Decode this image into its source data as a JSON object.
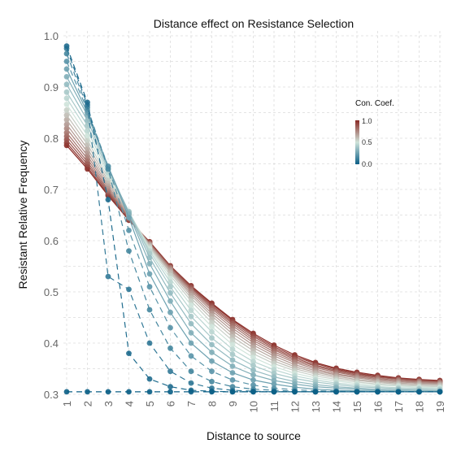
{
  "chart_data": {
    "type": "line",
    "title": "Distance effect on Resistance Selection",
    "xlabel": "Distance to source",
    "ylabel": "Resistant Relative Frequency",
    "x": [
      1,
      2,
      3,
      4,
      5,
      6,
      7,
      8,
      9,
      10,
      11,
      12,
      13,
      14,
      15,
      16,
      17,
      18,
      19
    ],
    "xlim": [
      1,
      19
    ],
    "ylim": [
      0.3,
      1.0
    ],
    "yticks": [
      "0.3",
      "0.4",
      "0.5",
      "0.6",
      "0.7",
      "0.8",
      "0.9",
      "1.0"
    ],
    "xticks": [
      "1",
      "2",
      "3",
      "4",
      "5",
      "6",
      "7",
      "8",
      "9",
      "10",
      "11",
      "12",
      "13",
      "14",
      "15",
      "16",
      "17",
      "18",
      "19"
    ],
    "grid": true,
    "legend": {
      "title": "Con. Coef.",
      "placement": "top-right",
      "ticks": [
        "0.0",
        "0.5",
        "1.0"
      ],
      "low_color": "#0b5f86",
      "mid_color": "#cfe3da",
      "high_color": "#8a2a25"
    },
    "series": [
      {
        "coef": 0.0,
        "values": [
          0.305,
          0.305,
          0.305,
          0.305,
          0.305,
          0.305,
          0.305,
          0.305,
          0.305,
          0.305,
          0.305,
          0.305,
          0.305,
          0.305,
          0.305,
          0.305,
          0.305,
          0.305,
          0.305
        ]
      },
      {
        "coef": 0.05,
        "values": [
          0.98,
          0.87,
          0.68,
          0.38,
          0.33,
          0.315,
          0.308,
          0.306,
          0.305,
          0.305,
          0.305,
          0.305,
          0.305,
          0.305,
          0.305,
          0.305,
          0.305,
          0.305,
          0.305
        ]
      },
      {
        "coef": 0.1,
        "values": [
          0.975,
          0.865,
          0.53,
          0.505,
          0.4,
          0.345,
          0.322,
          0.312,
          0.308,
          0.306,
          0.305,
          0.305,
          0.305,
          0.305,
          0.305,
          0.305,
          0.305,
          0.305,
          0.305
        ]
      },
      {
        "coef": 0.15,
        "values": [
          0.965,
          0.86,
          0.74,
          0.58,
          0.465,
          0.39,
          0.345,
          0.325,
          0.315,
          0.31,
          0.308,
          0.306,
          0.305,
          0.305,
          0.305,
          0.305,
          0.305,
          0.305,
          0.305
        ]
      },
      {
        "coef": 0.2,
        "values": [
          0.95,
          0.855,
          0.745,
          0.62,
          0.51,
          0.43,
          0.375,
          0.345,
          0.328,
          0.318,
          0.312,
          0.309,
          0.307,
          0.306,
          0.305,
          0.305,
          0.305,
          0.305,
          0.305
        ]
      },
      {
        "coef": 0.25,
        "values": [
          0.935,
          0.85,
          0.745,
          0.645,
          0.535,
          0.46,
          0.4,
          0.365,
          0.342,
          0.328,
          0.32,
          0.314,
          0.31,
          0.308,
          0.307,
          0.306,
          0.305,
          0.305,
          0.305
        ]
      },
      {
        "coef": 0.3,
        "values": [
          0.92,
          0.845,
          0.745,
          0.652,
          0.555,
          0.482,
          0.42,
          0.382,
          0.355,
          0.338,
          0.327,
          0.32,
          0.315,
          0.312,
          0.31,
          0.308,
          0.307,
          0.306,
          0.306
        ]
      },
      {
        "coef": 0.35,
        "values": [
          0.905,
          0.835,
          0.742,
          0.655,
          0.567,
          0.498,
          0.438,
          0.397,
          0.367,
          0.347,
          0.334,
          0.325,
          0.319,
          0.315,
          0.312,
          0.31,
          0.309,
          0.308,
          0.307
        ]
      },
      {
        "coef": 0.4,
        "values": [
          0.89,
          0.825,
          0.738,
          0.657,
          0.575,
          0.51,
          0.452,
          0.41,
          0.378,
          0.356,
          0.341,
          0.331,
          0.324,
          0.319,
          0.315,
          0.313,
          0.311,
          0.31,
          0.309
        ]
      },
      {
        "coef": 0.45,
        "values": [
          0.878,
          0.815,
          0.733,
          0.657,
          0.58,
          0.519,
          0.464,
          0.422,
          0.388,
          0.364,
          0.348,
          0.336,
          0.328,
          0.322,
          0.318,
          0.315,
          0.313,
          0.312,
          0.311
        ]
      },
      {
        "coef": 0.5,
        "values": [
          0.866,
          0.805,
          0.728,
          0.656,
          0.584,
          0.526,
          0.474,
          0.432,
          0.397,
          0.372,
          0.354,
          0.341,
          0.332,
          0.326,
          0.321,
          0.318,
          0.316,
          0.314,
          0.313
        ]
      },
      {
        "coef": 0.55,
        "values": [
          0.855,
          0.796,
          0.722,
          0.654,
          0.587,
          0.532,
          0.482,
          0.44,
          0.405,
          0.379,
          0.36,
          0.346,
          0.336,
          0.329,
          0.324,
          0.32,
          0.318,
          0.316,
          0.315
        ]
      },
      {
        "coef": 0.6,
        "values": [
          0.845,
          0.788,
          0.717,
          0.652,
          0.589,
          0.537,
          0.488,
          0.447,
          0.412,
          0.385,
          0.365,
          0.35,
          0.34,
          0.332,
          0.327,
          0.323,
          0.32,
          0.318,
          0.317
        ]
      },
      {
        "coef": 0.65,
        "values": [
          0.836,
          0.78,
          0.712,
          0.65,
          0.591,
          0.54,
          0.493,
          0.453,
          0.418,
          0.391,
          0.37,
          0.354,
          0.343,
          0.335,
          0.329,
          0.325,
          0.322,
          0.32,
          0.319
        ]
      },
      {
        "coef": 0.7,
        "values": [
          0.827,
          0.773,
          0.707,
          0.648,
          0.592,
          0.543,
          0.497,
          0.458,
          0.424,
          0.396,
          0.375,
          0.358,
          0.346,
          0.338,
          0.332,
          0.327,
          0.324,
          0.322,
          0.32
        ]
      },
      {
        "coef": 0.75,
        "values": [
          0.819,
          0.766,
          0.703,
          0.646,
          0.593,
          0.545,
          0.501,
          0.463,
          0.429,
          0.401,
          0.379,
          0.362,
          0.349,
          0.34,
          0.334,
          0.329,
          0.326,
          0.323,
          0.322
        ]
      },
      {
        "coef": 0.8,
        "values": [
          0.811,
          0.76,
          0.699,
          0.645,
          0.594,
          0.547,
          0.504,
          0.467,
          0.434,
          0.405,
          0.383,
          0.365,
          0.352,
          0.343,
          0.336,
          0.331,
          0.327,
          0.325,
          0.323
        ]
      },
      {
        "coef": 0.85,
        "values": [
          0.804,
          0.754,
          0.696,
          0.643,
          0.595,
          0.548,
          0.507,
          0.47,
          0.438,
          0.409,
          0.387,
          0.368,
          0.355,
          0.345,
          0.338,
          0.333,
          0.329,
          0.326,
          0.324
        ]
      },
      {
        "coef": 0.9,
        "values": [
          0.797,
          0.749,
          0.693,
          0.642,
          0.596,
          0.549,
          0.509,
          0.473,
          0.441,
          0.413,
          0.39,
          0.371,
          0.357,
          0.347,
          0.34,
          0.334,
          0.33,
          0.327,
          0.325
        ]
      },
      {
        "coef": 0.95,
        "values": [
          0.791,
          0.744,
          0.69,
          0.641,
          0.597,
          0.55,
          0.511,
          0.476,
          0.444,
          0.416,
          0.393,
          0.374,
          0.36,
          0.349,
          0.341,
          0.335,
          0.331,
          0.328,
          0.326
        ]
      },
      {
        "coef": 1.0,
        "values": [
          0.786,
          0.74,
          0.688,
          0.64,
          0.598,
          0.551,
          0.512,
          0.478,
          0.446,
          0.419,
          0.396,
          0.377,
          0.362,
          0.351,
          0.343,
          0.337,
          0.332,
          0.329,
          0.327
        ]
      }
    ]
  }
}
